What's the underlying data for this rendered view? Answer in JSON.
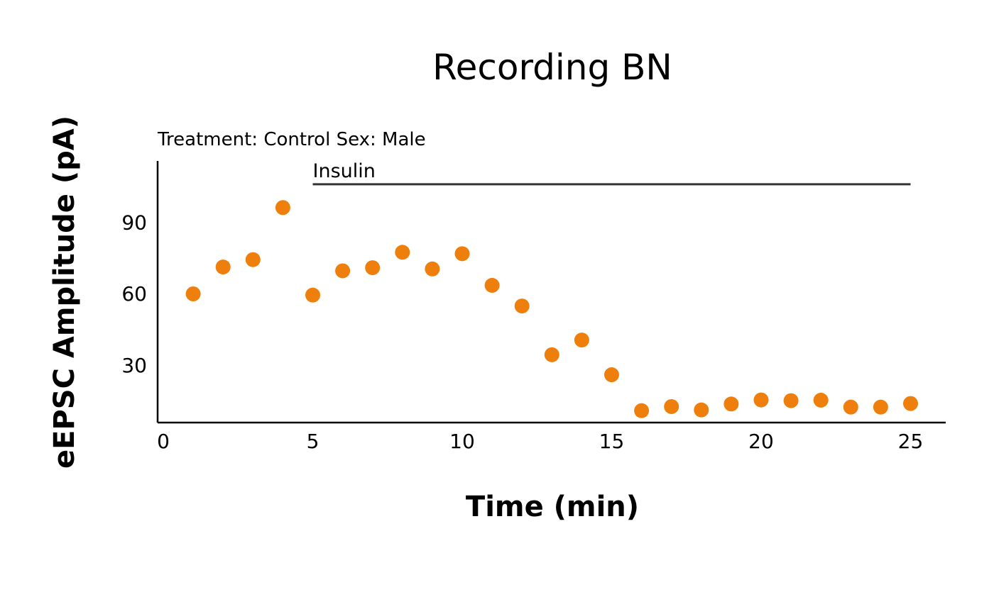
{
  "chart_data": {
    "type": "scatter",
    "title": "Recording BN",
    "subtitle": "Treatment: Control  Sex: Male",
    "xlabel": "Time (min)",
    "ylabel": "eEPSC Amplitude (pA)",
    "xlim": [
      0,
      26
    ],
    "ylim": [
      6,
      115
    ],
    "x_ticks": [
      0,
      5,
      10,
      15,
      20,
      25
    ],
    "y_ticks": [
      30,
      60,
      90
    ],
    "grid": false,
    "point_color": "#ef7f0c",
    "treatment_bar": {
      "label": "Insulin",
      "start": 5,
      "end": 25,
      "y": 106,
      "color": "#333333"
    },
    "x": [
      1,
      2,
      3,
      4,
      5,
      6,
      7,
      8,
      9,
      10,
      11,
      12,
      13,
      14,
      15,
      16,
      17,
      18,
      19,
      20,
      21,
      22,
      23,
      24,
      25
    ],
    "y": [
      59.9,
      71.2,
      74.3,
      96.2,
      59.4,
      69.6,
      70.9,
      77.4,
      70.4,
      76.8,
      63.5,
      54.8,
      34.3,
      40.5,
      25.9,
      10.8,
      12.5,
      11.1,
      13.6,
      15.3,
      15.0,
      15.2,
      12.3,
      12.3,
      13.8
    ]
  }
}
